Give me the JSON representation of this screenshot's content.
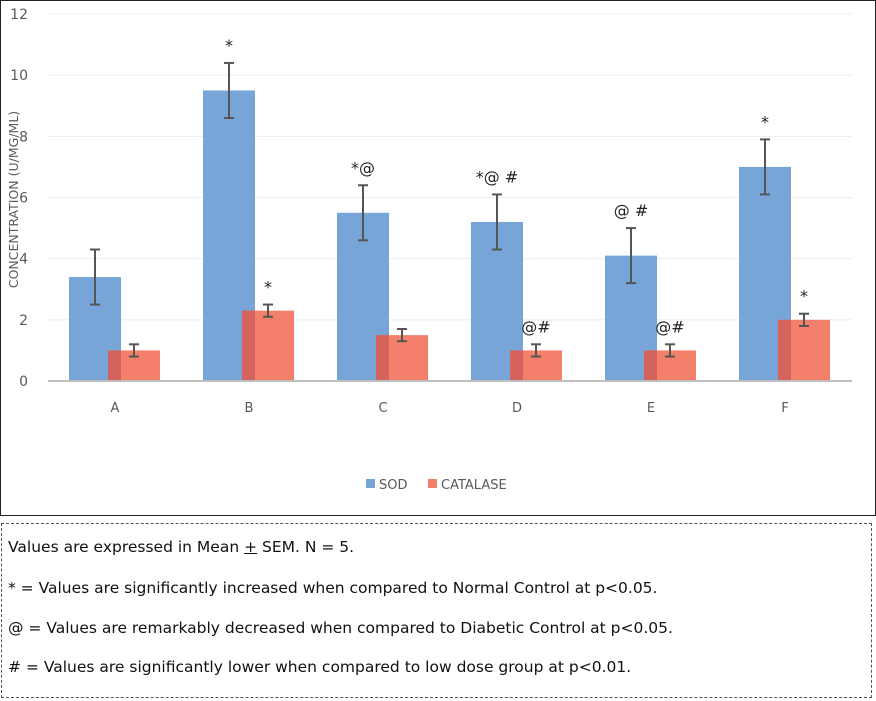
{
  "chart_data": {
    "type": "bar",
    "title": "",
    "xlabel": "",
    "ylabel": "CONCENTRATION (U/MG/ML)",
    "ylim": [
      0,
      12
    ],
    "yticks": [
      0,
      2,
      4,
      6,
      8,
      10,
      12
    ],
    "grid": true,
    "legend_position": "bottom",
    "categories": [
      "A",
      "B",
      "C",
      "D",
      "E",
      "F"
    ],
    "series": [
      {
        "name": "SOD",
        "color": "#78a5d7",
        "values": [
          3.4,
          9.5,
          5.5,
          5.2,
          4.1,
          7.0
        ],
        "errors": [
          0.9,
          0.9,
          0.9,
          0.9,
          0.9,
          0.9
        ],
        "annotations": [
          "",
          "*",
          "*@",
          "*@ #",
          "@ #",
          "*"
        ]
      },
      {
        "name": "CATALASE",
        "color": "#f4806c",
        "values": [
          1.0,
          2.3,
          1.5,
          1.0,
          1.0,
          2.0
        ],
        "errors": [
          0.2,
          0.2,
          0.2,
          0.2,
          0.2,
          0.2
        ],
        "annotations": [
          "",
          "*",
          "",
          "@#",
          "@#",
          "*"
        ]
      }
    ]
  },
  "notes": {
    "line1_pre": "Values are expressed in Mean ",
    "line1_pm": "+",
    "line1_post": " SEM. N = 5.",
    "line2": "* = Values are significantly increased when compared to Normal Control at p<0.05.",
    "line3": "@ = Values are remarkably decreased when compared to Diabetic Control at p<0.05.",
    "line4": "# = Values are significantly lower when compared to low dose group at p<0.01."
  }
}
